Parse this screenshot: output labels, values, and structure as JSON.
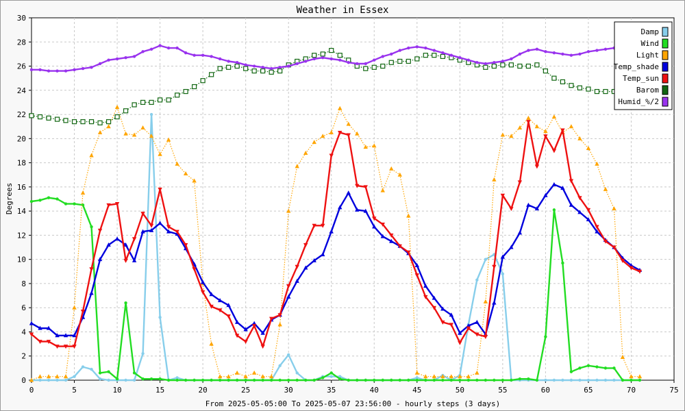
{
  "chart_data": {
    "type": "line",
    "title": "Weather in Essex",
    "xlabel": "From 2025-05-05:00 To 2025-05-07 23:56:00 - hourly steps (3 days)",
    "ylabel": "Degrees",
    "xlim": [
      0,
      75
    ],
    "ylim": [
      0,
      30
    ],
    "xticks": [
      0,
      5,
      10,
      15,
      20,
      25,
      30,
      35,
      40,
      45,
      50,
      55,
      60,
      65,
      70,
      75
    ],
    "yticks": [
      0,
      2,
      4,
      6,
      8,
      10,
      12,
      14,
      16,
      18,
      20,
      22,
      24,
      26,
      28,
      30
    ],
    "grid": true,
    "legend_position": "top-right",
    "x": [
      0,
      1,
      2,
      3,
      4,
      5,
      6,
      7,
      8,
      9,
      10,
      11,
      12,
      13,
      14,
      15,
      16,
      17,
      18,
      19,
      20,
      21,
      22,
      23,
      24,
      25,
      26,
      27,
      28,
      29,
      30,
      31,
      32,
      33,
      34,
      35,
      36,
      37,
      38,
      39,
      40,
      41,
      42,
      43,
      44,
      45,
      46,
      47,
      48,
      49,
      50,
      51,
      52,
      53,
      54,
      55,
      56,
      57,
      58,
      59,
      60,
      61,
      62,
      63,
      64,
      65,
      66,
      67,
      68,
      69,
      70,
      71
    ],
    "series": [
      {
        "name": "Damp",
        "color": "#87ceeb",
        "style": "solid",
        "marker": "dot",
        "values": [
          0,
          0,
          0,
          0,
          0,
          0.3,
          1.1,
          0.9,
          0.1,
          0,
          0,
          0,
          0,
          2.2,
          22,
          5.2,
          0,
          0.2,
          0,
          0,
          0,
          0,
          0,
          0,
          0,
          0,
          0,
          0,
          0,
          1.2,
          2.1,
          0.6,
          0,
          0,
          0.3,
          0.3,
          0.3,
          0,
          0,
          0,
          0,
          0,
          0,
          0,
          0,
          0.2,
          0,
          0,
          0.4,
          0,
          0.4,
          4.6,
          8.3,
          10,
          10.4,
          8.8,
          0,
          0,
          0,
          0,
          0,
          0,
          0,
          0,
          0,
          0,
          0,
          0,
          0,
          0,
          0,
          0
        ]
      },
      {
        "name": "Wind",
        "color": "#22dd22",
        "style": "solid",
        "marker": "dot",
        "values": [
          14.8,
          14.9,
          15.1,
          15,
          14.6,
          14.6,
          14.5,
          12.7,
          0.6,
          0.7,
          0.1,
          6.4,
          0.6,
          0.1,
          0.1,
          0.1,
          0,
          0,
          0,
          0,
          0,
          0,
          0,
          0,
          0,
          0,
          0,
          0,
          0,
          0,
          0,
          0,
          0,
          0,
          0.2,
          0.6,
          0.1,
          0,
          0,
          0,
          0,
          0,
          0,
          0,
          0,
          0,
          0,
          0,
          0,
          0,
          0,
          0,
          0,
          0,
          0,
          0,
          0,
          0.1,
          0.1,
          0,
          3.6,
          14.1,
          9.7,
          0.7,
          1,
          1.2,
          1.1,
          1,
          1,
          0,
          0,
          0
        ]
      },
      {
        "name": "Light",
        "color": "#ffa500",
        "style": "dotted",
        "marker": "triangle-up",
        "values": [
          0,
          0.3,
          0.3,
          0.3,
          0.3,
          6,
          15.5,
          18.6,
          20.5,
          21,
          22.6,
          20.4,
          20.3,
          20.9,
          20.2,
          18.7,
          19.9,
          17.9,
          17.1,
          16.5,
          8,
          3,
          0.3,
          0.3,
          0.6,
          0.3,
          0.6,
          0.3,
          0.3,
          4.6,
          14,
          17.7,
          18.8,
          19.7,
          20.2,
          20.5,
          22.5,
          21.2,
          20.4,
          19.3,
          19.4,
          15.7,
          17.5,
          17,
          13.6,
          0.6,
          0.3,
          0.3,
          0.3,
          0.3,
          0.3,
          0.3,
          0.6,
          6.5,
          16.6,
          20.3,
          20.2,
          20.9,
          21.7,
          21,
          20.6,
          21.8,
          20.5,
          21,
          20,
          19.2,
          17.9,
          15.8,
          14.2,
          1.9,
          0.3,
          0.3
        ]
      },
      {
        "name": "Temp_shade",
        "color": "#0000dd",
        "style": "solid",
        "marker": "triangle-up",
        "values": [
          4.7,
          4.3,
          4.3,
          3.7,
          3.7,
          3.7,
          5.2,
          7.2,
          10,
          11.2,
          11.7,
          11.2,
          9.9,
          12.3,
          12.4,
          13,
          12.3,
          12.1,
          10.9,
          9.6,
          8.1,
          7.1,
          6.6,
          6.2,
          4.8,
          4.2,
          4.7,
          3.9,
          5,
          5.4,
          6.9,
          8.2,
          9.3,
          9.9,
          10.4,
          12.3,
          14.3,
          15.5,
          14.1,
          14,
          12.7,
          11.9,
          11.5,
          11.1,
          10.5,
          9.5,
          7.8,
          6.8,
          5.9,
          5.4,
          3.9,
          4.5,
          4.8,
          3.8,
          6.4,
          10.2,
          11,
          12.2,
          14.5,
          14.2,
          15.3,
          16.2,
          15.9,
          14.5,
          13.9,
          13.3,
          12.3,
          11.6,
          11,
          10.1,
          9.5,
          9.1
        ]
      },
      {
        "name": "Temp_sun",
        "color": "#ee1111",
        "style": "solid",
        "marker": "triangle-down",
        "values": [
          3.8,
          3.2,
          3.2,
          2.8,
          2.8,
          2.8,
          5.7,
          9.2,
          12.4,
          14.5,
          14.6,
          9.9,
          11.7,
          13.8,
          12.8,
          15.8,
          12.7,
          12.3,
          11.2,
          9.2,
          7.3,
          6.1,
          5.8,
          5.3,
          3.7,
          3.2,
          4.5,
          2.8,
          5.1,
          5.4,
          7.8,
          9.4,
          11.2,
          12.8,
          12.8,
          18.6,
          20.5,
          20.3,
          16.1,
          16,
          13.4,
          12.9,
          12,
          11.1,
          10.6,
          8.7,
          6.9,
          6,
          4.8,
          4.6,
          3.1,
          4.3,
          3.8,
          3.6,
          9.4,
          15.3,
          14.2,
          16.4,
          21.4,
          17.7,
          20.2,
          19,
          20.7,
          16.5,
          15.1,
          14.1,
          12.7,
          11.5,
          11,
          9.9,
          9.3,
          9
        ]
      },
      {
        "name": "Barom",
        "color": "#116611",
        "style": "dotted",
        "marker": "open-square",
        "values": [
          21.9,
          21.8,
          21.7,
          21.6,
          21.5,
          21.4,
          21.4,
          21.4,
          21.3,
          21.4,
          21.8,
          22.3,
          22.8,
          23,
          23,
          23.2,
          23.2,
          23.6,
          23.9,
          24.3,
          24.8,
          25.3,
          25.8,
          25.9,
          26,
          25.8,
          25.6,
          25.6,
          25.5,
          25.6,
          26.1,
          26.4,
          26.6,
          26.9,
          27,
          27.3,
          26.9,
          26.5,
          26,
          25.8,
          25.9,
          26,
          26.3,
          26.4,
          26.4,
          26.6,
          26.9,
          26.9,
          26.8,
          26.7,
          26.5,
          26.3,
          26.1,
          25.9,
          26,
          26.1,
          26.1,
          26,
          26,
          26.1,
          25.6,
          25,
          24.7,
          24.4,
          24.2,
          24.1,
          23.9,
          23.9,
          23.9,
          null,
          null,
          null
        ]
      },
      {
        "name": "Humid_%/2",
        "color": "#9933ee",
        "style": "solid",
        "marker": "dot",
        "values": [
          25.7,
          25.7,
          25.6,
          25.6,
          25.6,
          25.7,
          25.8,
          25.9,
          26.2,
          26.5,
          26.6,
          26.7,
          26.8,
          27.2,
          27.4,
          27.7,
          27.5,
          27.5,
          27.1,
          26.9,
          26.9,
          26.8,
          26.6,
          26.4,
          26.3,
          26.1,
          26,
          25.9,
          25.8,
          25.9,
          26,
          26.2,
          26.4,
          26.6,
          26.7,
          26.6,
          26.5,
          26.3,
          26.2,
          26.2,
          26.5,
          26.8,
          27,
          27.3,
          27.5,
          27.6,
          27.5,
          27.3,
          27.1,
          26.9,
          26.7,
          26.5,
          26.3,
          26.2,
          26.3,
          26.4,
          26.6,
          27,
          27.3,
          27.4,
          27.2,
          27.1,
          27,
          26.9,
          27,
          27.2,
          27.3,
          27.4,
          27.5,
          null,
          null,
          null
        ]
      }
    ]
  }
}
